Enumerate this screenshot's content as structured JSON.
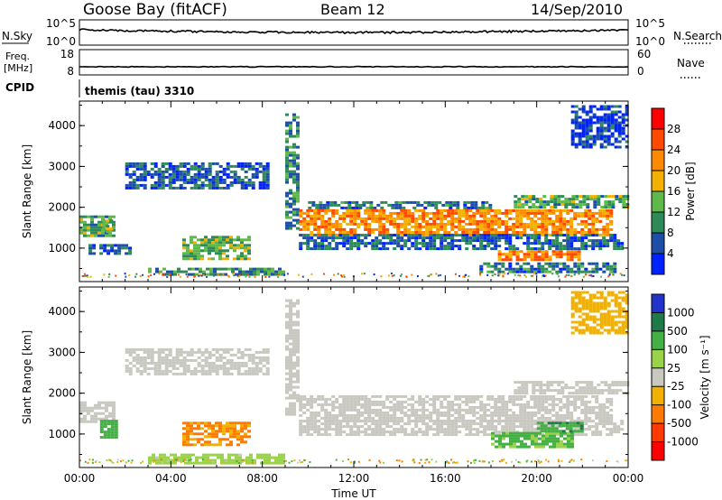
{
  "header": {
    "station": "Goose Bay (fitACF)",
    "beam": "Beam 12",
    "date": "14/Sep/2010"
  },
  "noise_panel": {
    "left_label": "N.Sky",
    "right_label": "N.Search",
    "left_ticks": [
      "10^5",
      "10^0"
    ],
    "right_ticks": [
      "10^5",
      "10^0"
    ]
  },
  "freq_panel": {
    "left_label_1": "Freq.",
    "left_label_2": "[MHz]",
    "right_label": "Nave",
    "left_ticks": [
      "18",
      "8"
    ],
    "right_ticks": [
      "60",
      "0"
    ]
  },
  "cpid_panel": {
    "label": "CPID",
    "value": "themis (tau) 3310"
  },
  "chart_data": [
    {
      "type": "heatmap",
      "id": "power",
      "xlabel": "",
      "ylabel": "Slant Range [km]",
      "xlim": [
        "00:00",
        "24:00"
      ],
      "ylim": [
        180,
        4600
      ],
      "yticks": [
        "1000",
        "2000",
        "3000",
        "4000"
      ],
      "colorbar": {
        "label": "Power [dB]",
        "ticks": [
          "4",
          "8",
          "12",
          "16",
          "20",
          "24",
          "28"
        ],
        "colors": [
          "#0022ff",
          "#1d4fa8",
          "#2e8b57",
          "#5fb84a",
          "#f2b100",
          "#ff8a00",
          "#ff4a00",
          "#ff0000"
        ]
      },
      "regions": [
        {
          "t": [
            0.0,
            1.5
          ],
          "r": [
            1300,
            1800
          ],
          "v": 12
        },
        {
          "t": [
            0.4,
            2.2
          ],
          "r": [
            850,
            1100
          ],
          "v": 6
        },
        {
          "t": [
            1.0,
            1.4
          ],
          "r": [
            1400,
            1700
          ],
          "v": 14
        },
        {
          "t": [
            2.0,
            8.3
          ],
          "r": [
            2500,
            3100
          ],
          "v": 6
        },
        {
          "t": [
            4.5,
            7.5
          ],
          "r": [
            750,
            1300
          ],
          "v": 13
        },
        {
          "t": [
            3.0,
            9.0
          ],
          "r": [
            350,
            520
          ],
          "v": 10
        },
        {
          "t": [
            9.0,
            9.6
          ],
          "r": [
            1500,
            4300
          ],
          "v": 9
        },
        {
          "t": [
            9.6,
            23.2
          ],
          "r": [
            1350,
            1950
          ],
          "v": 22
        },
        {
          "t": [
            9.6,
            23.8
          ],
          "r": [
            1000,
            1350
          ],
          "v": 7
        },
        {
          "t": [
            10.0,
            18.0
          ],
          "r": [
            2000,
            2150
          ],
          "v": 8
        },
        {
          "t": [
            18.3,
            21.8
          ],
          "r": [
            700,
            950
          ],
          "v": 23
        },
        {
          "t": [
            17.5,
            23.5
          ],
          "r": [
            450,
            650
          ],
          "v": 8
        },
        {
          "t": [
            19.0,
            24.0
          ],
          "r": [
            2000,
            2300
          ],
          "v": 12
        },
        {
          "t": [
            21.5,
            24.0
          ],
          "r": [
            3500,
            4500
          ],
          "v": 4
        }
      ]
    },
    {
      "type": "heatmap",
      "id": "velocity",
      "xlabel": "Time UT",
      "ylabel": "Slant Range [km]",
      "xlim": [
        "00:00",
        "24:00"
      ],
      "ylim": [
        180,
        4600
      ],
      "xticks": [
        "00:00",
        "04:00",
        "08:00",
        "12:00",
        "16:00",
        "20:00",
        "00:00"
      ],
      "yticks": [
        "1000",
        "2000",
        "3000",
        "4000"
      ],
      "colorbar": {
        "label": "Velocity [m s⁻¹]",
        "ticks": [
          "1000",
          "500",
          "100",
          "25",
          "-25",
          "-100",
          "-500",
          "-1000"
        ],
        "colors": [
          "#2233cc",
          "#1f7a4a",
          "#44b044",
          "#9ad24a",
          "#c8c8c0",
          "#f2b100",
          "#ff7a00",
          "#ff3a00",
          "#ff0000"
        ]
      },
      "regions": [
        {
          "t": [
            0.0,
            1.5
          ],
          "r": [
            1300,
            1800
          ],
          "v": 0
        },
        {
          "t": [
            0.9,
            1.6
          ],
          "r": [
            900,
            1350
          ],
          "v": 250
        },
        {
          "t": [
            2.0,
            8.3
          ],
          "r": [
            2500,
            3100
          ],
          "v": 0
        },
        {
          "t": [
            4.5,
            7.5
          ],
          "r": [
            750,
            1300
          ],
          "v": -120
        },
        {
          "t": [
            3.0,
            9.0
          ],
          "r": [
            300,
            520
          ],
          "v": 60
        },
        {
          "t": [
            9.0,
            9.6
          ],
          "r": [
            1500,
            4300
          ],
          "v": 0
        },
        {
          "t": [
            9.6,
            23.2
          ],
          "r": [
            1350,
            1950
          ],
          "v": 0
        },
        {
          "t": [
            9.6,
            23.8
          ],
          "r": [
            1000,
            1350
          ],
          "v": 0
        },
        {
          "t": [
            18.0,
            21.5
          ],
          "r": [
            700,
            1050
          ],
          "v": 150
        },
        {
          "t": [
            20.0,
            22.0
          ],
          "r": [
            1050,
            1300
          ],
          "v": 400
        },
        {
          "t": [
            19.0,
            24.0
          ],
          "r": [
            2000,
            2300
          ],
          "v": 0
        },
        {
          "t": [
            21.5,
            24.0
          ],
          "r": [
            3500,
            4500
          ],
          "v": -60
        }
      ]
    }
  ]
}
